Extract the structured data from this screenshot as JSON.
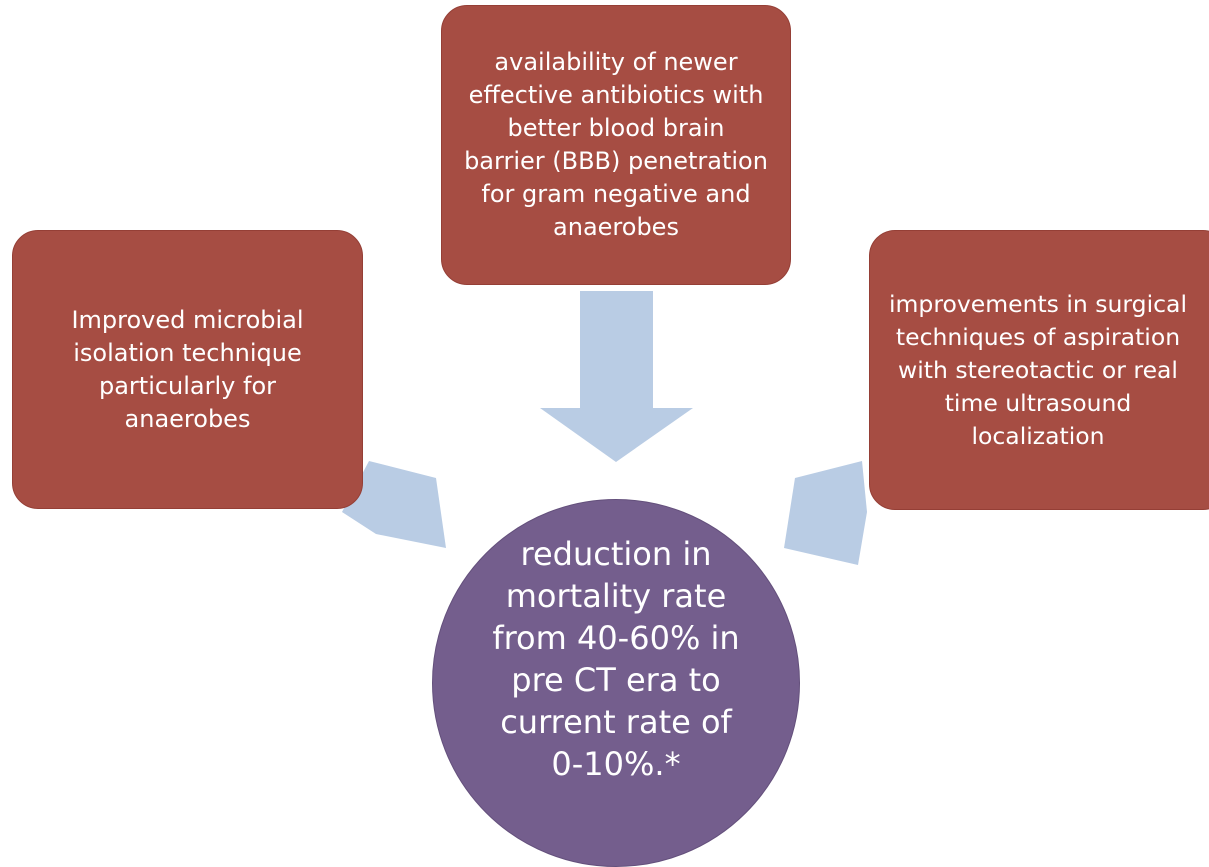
{
  "diagram": {
    "left_box": "Improved microbial\nisolation technique\nparticularly for\nanaerobes",
    "top_box": "availability of newer\neffective antibiotics with\nbetter blood brain\nbarrier (BBB) penetration\nfor gram negative and\nanaerobes",
    "right_box": "improvements in surgical\ntechniques of aspiration\nwith stereotactic or real\ntime ultrasound\nlocalization",
    "center_circle": "reduction in\nmortality rate\nfrom 40-60% in\npre CT era to\ncurrent rate of\n0-10%.*"
  },
  "colors": {
    "box_fill": "#a64d43",
    "circle_fill": "#745e8d",
    "arrow_fill": "#b9cce4",
    "text": "#ffffff"
  }
}
